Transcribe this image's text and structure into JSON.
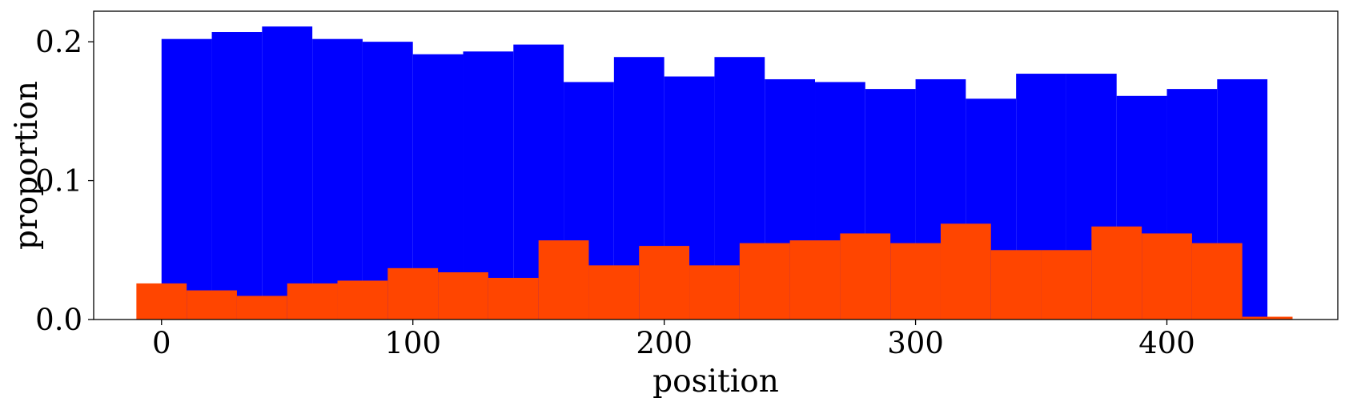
{
  "chart_data": {
    "type": "bar",
    "xlabel": "position",
    "ylabel": "proportion",
    "xlim": [
      -27,
      468
    ],
    "ylim": [
      0,
      0.222
    ],
    "bin_width": 20,
    "xticks": [
      0,
      100,
      200,
      300,
      400
    ],
    "xtick_labels": [
      "0",
      "100",
      "200",
      "300",
      "400"
    ],
    "yticks": [
      0,
      0.1,
      0.2
    ],
    "ytick_labels": [
      "0.0",
      "0.1",
      "0.2"
    ],
    "series": [
      {
        "color": "#0000ff",
        "x": [
          0,
          20,
          40,
          60,
          80,
          100,
          120,
          140,
          160,
          180,
          200,
          220,
          240,
          260,
          280,
          300,
          320,
          340,
          360,
          380,
          400,
          420
        ],
        "values": [
          0.202,
          0.207,
          0.211,
          0.202,
          0.2,
          0.191,
          0.193,
          0.198,
          0.171,
          0.189,
          0.175,
          0.189,
          0.173,
          0.171,
          0.166,
          0.173,
          0.159,
          0.177,
          0.177,
          0.161,
          0.166,
          0.173
        ]
      },
      {
        "color": "#ff4500",
        "x": [
          -10,
          10,
          30,
          50,
          70,
          90,
          110,
          130,
          150,
          170,
          190,
          210,
          230,
          250,
          270,
          290,
          310,
          330,
          350,
          370,
          390,
          410,
          430
        ],
        "values": [
          0.026,
          0.021,
          0.017,
          0.026,
          0.028,
          0.037,
          0.034,
          0.03,
          0.057,
          0.039,
          0.053,
          0.039,
          0.055,
          0.057,
          0.062,
          0.055,
          0.069,
          0.05,
          0.05,
          0.067,
          0.062,
          0.055,
          0.002
        ]
      }
    ]
  }
}
